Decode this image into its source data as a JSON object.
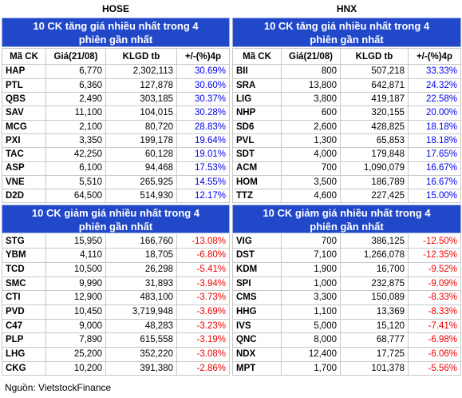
{
  "panels": [
    {
      "exchange": "HOSE",
      "columns": [
        "Mã CK",
        "Giá(21/08)",
        "KLGD tb",
        "+/-(%)4p"
      ],
      "sections": [
        {
          "title": "10 CK tăng giá nhiều nhất trong 4 phiên gần nhất",
          "rows": [
            [
              "HAP",
              "6,770",
              "2,302,113",
              "30.69%"
            ],
            [
              "PTL",
              "6,360",
              "127,878",
              "30.60%"
            ],
            [
              "QBS",
              "2,490",
              "303,185",
              "30.37%"
            ],
            [
              "SAV",
              "11,100",
              "104,015",
              "30.28%"
            ],
            [
              "MCG",
              "2,100",
              "80,720",
              "28.83%"
            ],
            [
              "PXI",
              "3,350",
              "199,178",
              "19.64%"
            ],
            [
              "TAC",
              "42,250",
              "60,128",
              "19.01%"
            ],
            [
              "ASP",
              "6,100",
              "94,468",
              "17.53%"
            ],
            [
              "VNE",
              "5,510",
              "265,925",
              "14.55%"
            ],
            [
              "D2D",
              "64,500",
              "514,930",
              "12.17%"
            ]
          ]
        },
        {
          "title": "10 CK giảm giá nhiều nhất trong 4 phiên gần nhất",
          "rows": [
            [
              "STG",
              "15,950",
              "166,760",
              "-13.08%"
            ],
            [
              "YBM",
              "4,110",
              "18,705",
              "-6.80%"
            ],
            [
              "TCD",
              "10,500",
              "26,298",
              "-5.41%"
            ],
            [
              "SMC",
              "9,990",
              "31,893",
              "-3.94%"
            ],
            [
              "CTI",
              "12,900",
              "483,100",
              "-3.73%"
            ],
            [
              "PVD",
              "10,450",
              "3,719,948",
              "-3.69%"
            ],
            [
              "C47",
              "9,000",
              "48,283",
              "-3.23%"
            ],
            [
              "PLP",
              "7,890",
              "615,558",
              "-3.19%"
            ],
            [
              "LHG",
              "25,200",
              "352,220",
              "-3.08%"
            ],
            [
              "CKG",
              "10,200",
              "391,380",
              "-2.86%"
            ]
          ]
        }
      ]
    },
    {
      "exchange": "HNX",
      "columns": [
        "Mã CK",
        "Giá(21/08)",
        "KLGD tb",
        "+/-(%)4p"
      ],
      "sections": [
        {
          "title": "10 CK tăng giá nhiều nhất trong 4 phiên gần nhất",
          "rows": [
            [
              "BII",
              "800",
              "507,218",
              "33.33%"
            ],
            [
              "SRA",
              "13,800",
              "642,871",
              "24.32%"
            ],
            [
              "LIG",
              "3,800",
              "419,187",
              "22.58%"
            ],
            [
              "NHP",
              "600",
              "320,155",
              "20.00%"
            ],
            [
              "SD6",
              "2,600",
              "428,825",
              "18.18%"
            ],
            [
              "PVL",
              "1,300",
              "65,853",
              "18.18%"
            ],
            [
              "SDT",
              "4,000",
              "179,848",
              "17.65%"
            ],
            [
              "ACM",
              "700",
              "1,090,079",
              "16.67%"
            ],
            [
              "HOM",
              "3,500",
              "186,789",
              "16.67%"
            ],
            [
              "TTZ",
              "4,600",
              "227,425",
              "15.00%"
            ]
          ]
        },
        {
          "title": "10 CK giảm giá nhiều nhất trong 4 phiên gần nhất",
          "rows": [
            [
              "VIG",
              "700",
              "386,125",
              "-12.50%"
            ],
            [
              "DST",
              "7,100",
              "1,266,078",
              "-12.35%"
            ],
            [
              "KDM",
              "1,900",
              "16,700",
              "-9.52%"
            ],
            [
              "SPI",
              "1,000",
              "232,875",
              "-9.09%"
            ],
            [
              "CMS",
              "3,300",
              "150,089",
              "-8.33%"
            ],
            [
              "HHG",
              "1,100",
              "13,369",
              "-8.33%"
            ],
            [
              "IVS",
              "5,000",
              "15,120",
              "-7.41%"
            ],
            [
              "QNC",
              "8,000",
              "68,777",
              "-6.98%"
            ],
            [
              "NDX",
              "12,400",
              "17,725",
              "-6.06%"
            ],
            [
              "MPT",
              "1,700",
              "101,378",
              "-5.56%"
            ]
          ]
        }
      ]
    }
  ],
  "source": "Nguồn: VietstockFinance"
}
